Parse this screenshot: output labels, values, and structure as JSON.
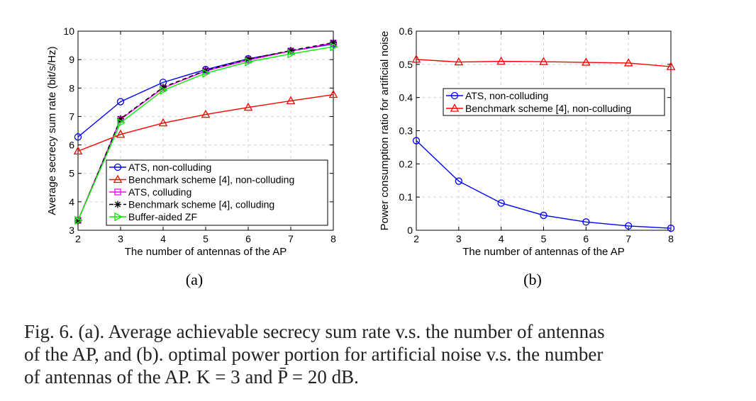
{
  "caption": {
    "lines": [
      "Fig. 6.   (a). Average achievable secrecy sum rate v.s. the number of antennas",
      "of the AP, and (b). optimal power portion for artificial noise v.s. the number",
      "of antennas of the AP. K = 3 and P̄ = 20 dB."
    ]
  },
  "chart_data": [
    {
      "id": "a",
      "panel_label": "(a)",
      "type": "line",
      "xlabel": "The number of antennas of the AP",
      "ylabel": "Average secrecy sum rate (bit/s/Hz)",
      "xlim": [
        2,
        8
      ],
      "ylim": [
        3,
        10
      ],
      "xticks": [
        2,
        3,
        4,
        5,
        6,
        7,
        8
      ],
      "yticks": [
        3,
        4,
        5,
        6,
        7,
        8,
        9,
        10
      ],
      "grid": true,
      "legend_position": "bottom-right",
      "x": [
        2,
        3,
        4,
        5,
        6,
        7,
        8
      ],
      "series": [
        {
          "name": "ATS, non-colluding",
          "color": "#0000ff",
          "marker": "circle",
          "dash": "solid",
          "values": [
            6.28,
            7.52,
            8.2,
            8.65,
            9.03,
            9.3,
            9.55
          ]
        },
        {
          "name": "Benchmark scheme [4], non-colluding",
          "color": "#ff0000",
          "marker": "triangle",
          "dash": "solid",
          "values": [
            5.78,
            6.37,
            6.77,
            7.07,
            7.32,
            7.55,
            7.77
          ]
        },
        {
          "name": "ATS, colluding",
          "color": "#ff00ff",
          "marker": "square",
          "dash": "solid",
          "values": [
            3.35,
            6.9,
            8.0,
            8.6,
            8.98,
            9.3,
            9.58
          ]
        },
        {
          "name": "Benchmark scheme [4], colluding",
          "color": "#000000",
          "marker": "star",
          "dash": "dashed",
          "values": [
            3.33,
            6.92,
            8.03,
            8.62,
            9.02,
            9.32,
            9.6
          ]
        },
        {
          "name": "Buffer-aided ZF",
          "color": "#00ee00",
          "marker": "triangle-right",
          "dash": "solid",
          "values": [
            3.35,
            6.78,
            7.92,
            8.52,
            8.92,
            9.2,
            9.45
          ]
        }
      ]
    },
    {
      "id": "b",
      "panel_label": "(b)",
      "type": "line",
      "xlabel": "The number of antennas of the AP",
      "ylabel": "Power consumption ratio for artificial noise",
      "xlim": [
        2,
        8
      ],
      "ylim": [
        0,
        0.6
      ],
      "xticks": [
        2,
        3,
        4,
        5,
        6,
        7,
        8
      ],
      "yticks": [
        0,
        0.1,
        0.2,
        0.3,
        0.4,
        0.5,
        0.6
      ],
      "grid": true,
      "legend_position": "top-right",
      "x": [
        2,
        3,
        4,
        5,
        6,
        7,
        8
      ],
      "series": [
        {
          "name": "ATS, non-colluding",
          "color": "#0000ff",
          "marker": "circle",
          "dash": "solid",
          "values": [
            0.27,
            0.148,
            0.082,
            0.045,
            0.025,
            0.013,
            0.006
          ]
        },
        {
          "name": "Benchmark scheme [4], non-colluding",
          "color": "#ff0000",
          "marker": "triangle",
          "dash": "solid",
          "values": [
            0.515,
            0.507,
            0.509,
            0.508,
            0.506,
            0.504,
            0.493
          ]
        }
      ]
    }
  ]
}
